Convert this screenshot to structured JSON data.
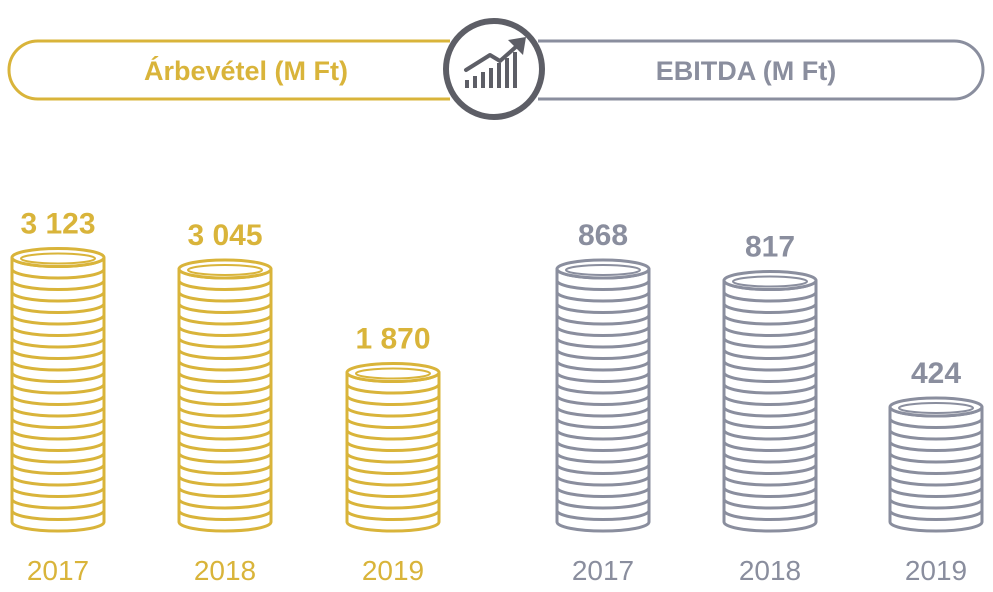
{
  "colors": {
    "gold": "#d9b43a",
    "gray": "#8a8e9e",
    "icon": "#5d5e66"
  },
  "header": {
    "left_label": "Árbevétel (M Ft)",
    "right_label": "EBITDA (M Ft)",
    "icon": "growth-chart-icon"
  },
  "chart_data": [
    {
      "type": "bar",
      "title": "Árbevétel (M Ft)",
      "categories": [
        "2017",
        "2018",
        "2019"
      ],
      "values": [
        3123,
        3045,
        1870
      ],
      "value_labels": [
        "3 123",
        "3 045",
        "1 870"
      ],
      "color": "#d9b43a"
    },
    {
      "type": "bar",
      "title": "EBITDA (M Ft)",
      "categories": [
        "2017",
        "2018",
        "2019"
      ],
      "values": [
        868,
        817,
        424
      ],
      "value_labels": [
        "868",
        "817",
        "424"
      ],
      "color": "#8a8e9e"
    }
  ]
}
